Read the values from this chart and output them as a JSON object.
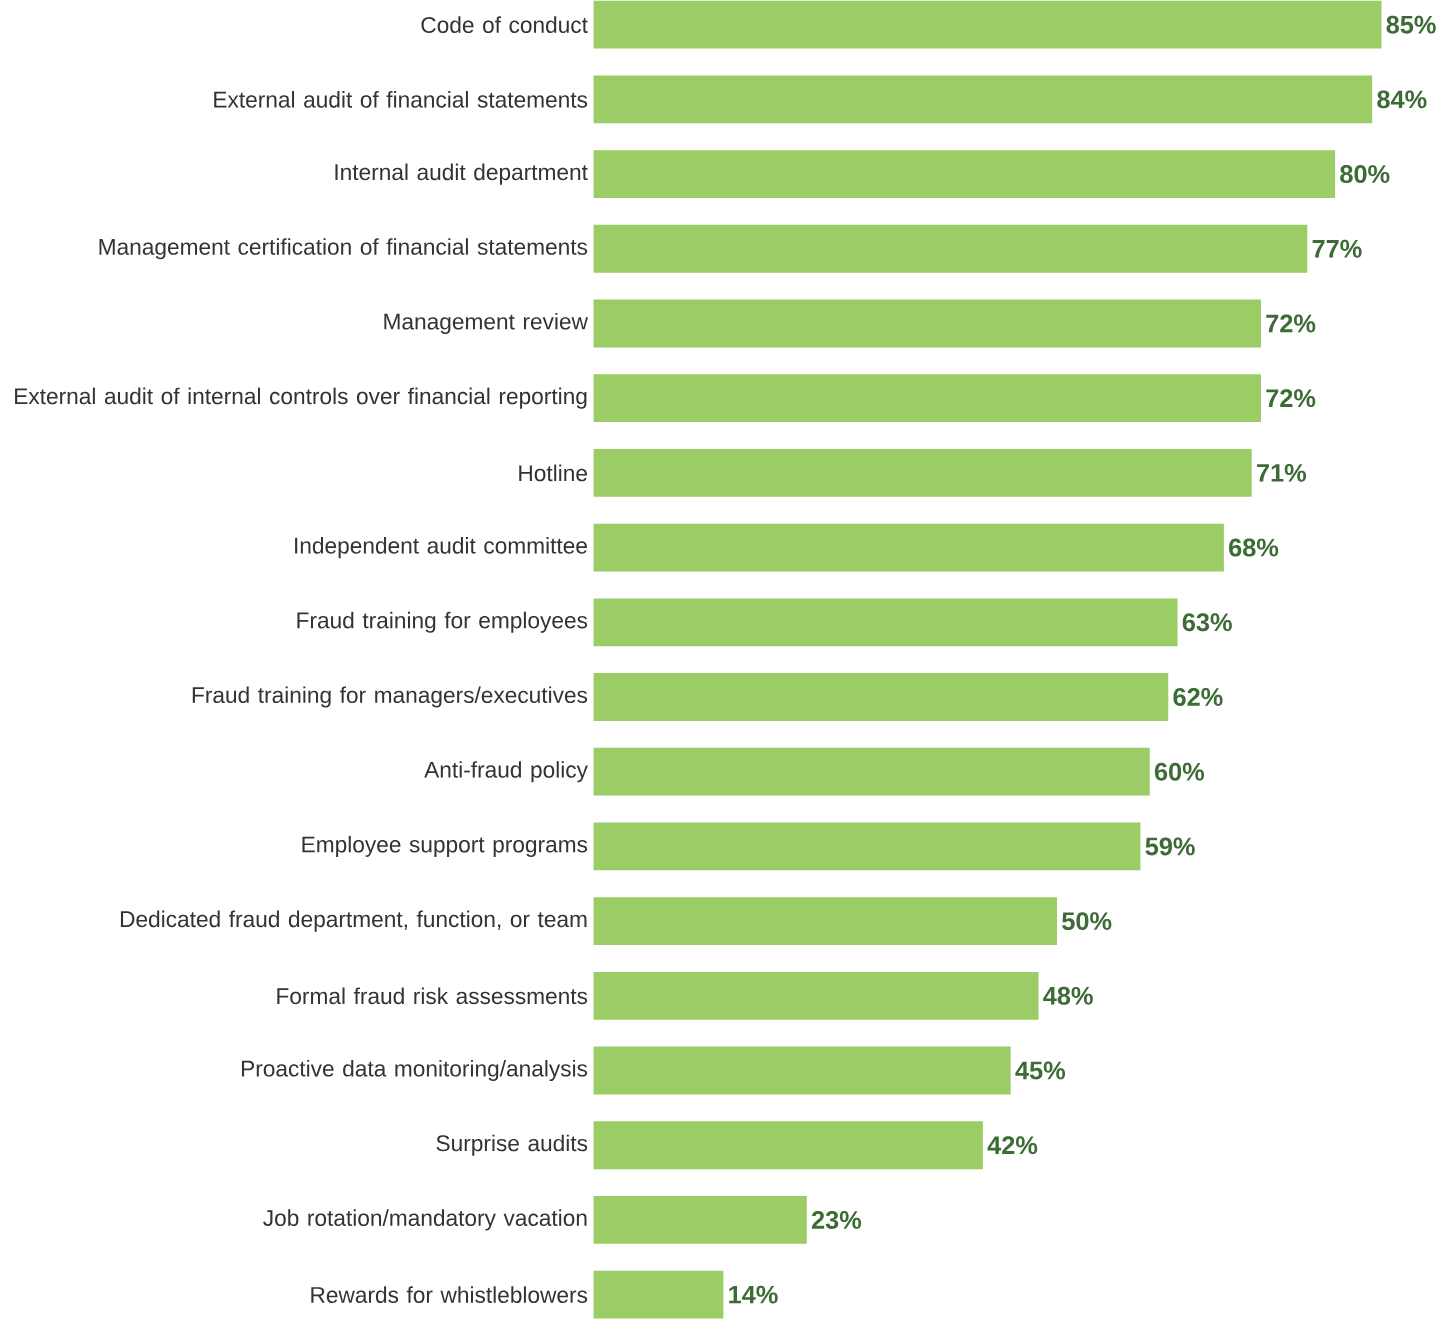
{
  "chart_data": {
    "type": "bar",
    "orientation": "horizontal",
    "categories": [
      "Code of conduct",
      "External audit of financial statements",
      "Internal audit department",
      "Management certification of financial statements",
      "Management review",
      "External audit of internal controls over financial reporting",
      "Hotline",
      "Independent audit committee",
      "Fraud training for employees",
      "Fraud training for managers/executives",
      "Anti-fraud policy",
      "Employee support programs",
      "Dedicated fraud department, function, or team",
      "Formal fraud risk assessments",
      "Proactive data monitoring/analysis",
      "Surprise audits",
      "Job rotation/mandatory vacation",
      "Rewards for whistleblowers"
    ],
    "values": [
      85,
      84,
      80,
      77,
      72,
      72,
      71,
      68,
      63,
      62,
      60,
      59,
      50,
      48,
      45,
      42,
      23,
      14
    ],
    "value_labels": [
      "85%",
      "84%",
      "80%",
      "77%",
      "72%",
      "72%",
      "71%",
      "68%",
      "63%",
      "62%",
      "60%",
      "59%",
      "50%",
      "48%",
      "45%",
      "42%",
      "23%",
      "14%"
    ],
    "color": "#9ccc65"
  }
}
